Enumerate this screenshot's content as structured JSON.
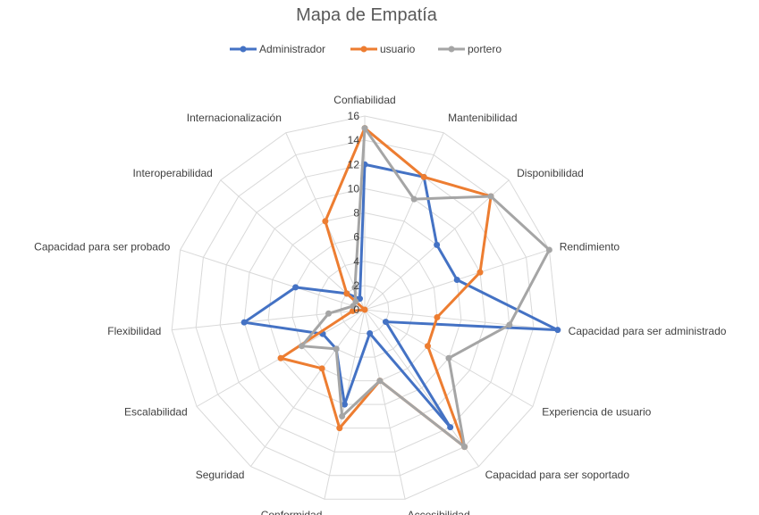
{
  "chart_data": {
    "type": "radar",
    "title": "Mapa de Empatía",
    "categories": [
      "Confiabilidad",
      "Mantenibilidad",
      "Disponibilidad",
      "Rendimiento",
      "Capacidad para ser administrado",
      "Experiencia de usuario",
      "Capacidad para ser soportado",
      "Accesibilidad",
      "Conformidad",
      "Seguridad",
      "Escalabilidad",
      "Flexibilidad",
      "Capacidad para ser probado",
      "Interoperabilidad",
      "Internacionalización"
    ],
    "ticks": [
      "0",
      "2",
      "4",
      "6",
      "8",
      "10",
      "12",
      "14",
      "16"
    ],
    "rlim": [
      0,
      16
    ],
    "grid": true,
    "legend_position": "top",
    "series": [
      {
        "name": "Administrador",
        "color": "#4472C4",
        "values": [
          12,
          12,
          8,
          8,
          16,
          2,
          12,
          2,
          8,
          4,
          4,
          10,
          6,
          2,
          1
        ]
      },
      {
        "name": "usuario",
        "color": "#ED7D31",
        "values": [
          15,
          12,
          14,
          10,
          6,
          6,
          14,
          6,
          10,
          6,
          8,
          1,
          0,
          2,
          8
        ]
      },
      {
        "name": "portero",
        "color": "#A5A5A5",
        "values": [
          15,
          10,
          14,
          16,
          12,
          8,
          14,
          6,
          9,
          4,
          6,
          3,
          1,
          1,
          2
        ]
      }
    ]
  }
}
